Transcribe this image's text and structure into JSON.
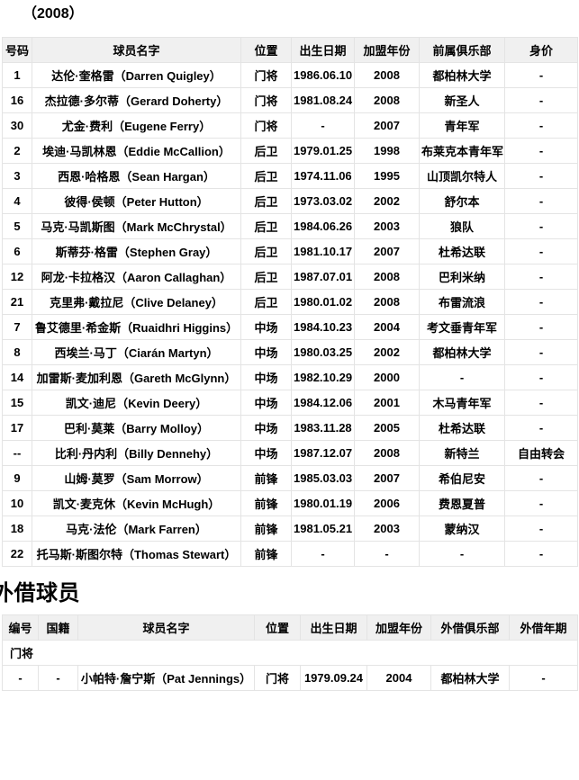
{
  "season_title": "（2008）",
  "loan_heading": "外借球员",
  "colors": {
    "header_bg": "#f0f0f0",
    "border": "#e4e4e4",
    "text": "#000000"
  },
  "main_table": {
    "headers": [
      "号码",
      "球员名字",
      "位置",
      "出生日期",
      "加盟年份",
      "前属俱乐部",
      "身价"
    ],
    "rows": [
      [
        "1",
        "达伦·奎格雷（Darren Quigley）",
        "门将",
        "1986.06.10",
        "2008",
        "都柏林大学",
        "-"
      ],
      [
        "16",
        "杰拉德·多尔蒂（Gerard Doherty）",
        "门将",
        "1981.08.24",
        "2008",
        "新圣人",
        "-"
      ],
      [
        "30",
        "尤金·费利（Eugene Ferry）",
        "门将",
        "-",
        "2007",
        "青年军",
        "-"
      ],
      [
        "2",
        "埃迪·马凯林恩（Eddie McCallion）",
        "后卫",
        "1979.01.25",
        "1998",
        "布莱克本青年军",
        "-"
      ],
      [
        "3",
        "西恩·哈格恩（Sean Hargan）",
        "后卫",
        "1974.11.06",
        "1995",
        "山顶凯尔特人",
        "-"
      ],
      [
        "4",
        "彼得·侯顿（Peter Hutton）",
        "后卫",
        "1973.03.02",
        "2002",
        "舒尔本",
        "-"
      ],
      [
        "5",
        "马克·马凯斯图（Mark McChrystal）",
        "后卫",
        "1984.06.26",
        "2003",
        "狼队",
        "-"
      ],
      [
        "6",
        "斯蒂芬·格雷（Stephen Gray）",
        "后卫",
        "1981.10.17",
        "2007",
        "杜希达联",
        "-"
      ],
      [
        "12",
        "阿龙·卡拉格汉（Aaron Callaghan）",
        "后卫",
        "1987.07.01",
        "2008",
        "巴利米纳",
        "-"
      ],
      [
        "21",
        "克里弗·戴拉尼（Clive Delaney）",
        "后卫",
        "1980.01.02",
        "2008",
        "布雷流浪",
        "-"
      ],
      [
        "7",
        "鲁艾德里·希金斯（Ruaidhri Higgins）",
        "中场",
        "1984.10.23",
        "2004",
        "考文垂青年军",
        "-"
      ],
      [
        "8",
        "西埃兰·马丁（Ciarán Martyn）",
        "中场",
        "1980.03.25",
        "2002",
        "都柏林大学",
        "-"
      ],
      [
        "14",
        "加雷斯·麦加利恩（Gareth McGlynn）",
        "中场",
        "1982.10.29",
        "2000",
        "-",
        "-"
      ],
      [
        "15",
        "凯文·迪尼（Kevin Deery）",
        "中场",
        "1984.12.06",
        "2001",
        "木马青年军",
        "-"
      ],
      [
        "17",
        "巴利·莫莱（Barry Molloy）",
        "中场",
        "1983.11.28",
        "2005",
        "杜希达联",
        "-"
      ],
      [
        "--",
        "比利·丹内利（Billy Dennehy）",
        "中场",
        "1987.12.07",
        "2008",
        "新特兰",
        "自由转会"
      ],
      [
        "9",
        "山姆·莫罗（Sam Morrow）",
        "前锋",
        "1985.03.03",
        "2007",
        "希伯尼安",
        "-"
      ],
      [
        "10",
        "凯文·麦克休（Kevin McHugh）",
        "前锋",
        "1980.01.19",
        "2006",
        "费恩夏普",
        "-"
      ],
      [
        "18",
        "马克·法伦（Mark Farren）",
        "前锋",
        "1981.05.21",
        "2003",
        "蒙纳汉",
        "-"
      ],
      [
        "22",
        "托马斯·斯图尔特（Thomas Stewart）",
        "前锋",
        "-",
        "-",
        "-",
        "-"
      ]
    ]
  },
  "loan_table": {
    "headers": [
      "编号",
      "国籍",
      "球员名字",
      "位置",
      "出生日期",
      "加盟年份",
      "外借俱乐部",
      "外借年期"
    ],
    "sections": [
      {
        "label": "门将",
        "rows": [
          [
            "-",
            "-",
            "小帕特·詹宁斯（Pat Jennings）",
            "门将",
            "1979.09.24",
            "2004",
            "都柏林大学",
            "-"
          ]
        ]
      }
    ]
  }
}
